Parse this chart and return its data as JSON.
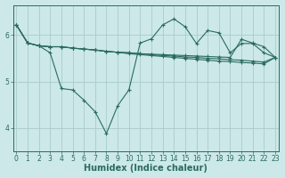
{
  "bg_color": "#cce8e8",
  "grid_color": "#aacccc",
  "line_color": "#2a6b60",
  "xlabel": "Humidex (Indice chaleur)",
  "xlabel_fontsize": 7,
  "tick_fontsize": 5.5,
  "xlim": [
    -0.3,
    23.3
  ],
  "ylim": [
    3.5,
    6.65
  ],
  "yticks": [
    4,
    5,
    6
  ],
  "xticks": [
    0,
    1,
    2,
    3,
    4,
    5,
    6,
    7,
    8,
    9,
    10,
    11,
    12,
    13,
    14,
    15,
    16,
    17,
    18,
    19,
    20,
    21,
    22,
    23
  ],
  "lines": [
    {
      "x": [
        0,
        1,
        2,
        3,
        4,
        5,
        6,
        7,
        8,
        9,
        10,
        11,
        12,
        13,
        14,
        15,
        16,
        17,
        18,
        19,
        20,
        21,
        22,
        23
      ],
      "y": [
        6.22,
        5.83,
        5.77,
        5.75,
        5.75,
        5.72,
        5.7,
        5.68,
        5.65,
        5.63,
        5.62,
        5.6,
        5.59,
        5.58,
        5.57,
        5.56,
        5.55,
        5.54,
        5.53,
        5.52,
        5.91,
        5.83,
        5.75,
        5.52
      ],
      "marker": true
    },
    {
      "x": [
        0,
        1,
        2,
        3,
        4,
        5,
        6,
        7,
        8,
        9,
        10,
        11,
        12,
        13,
        14,
        15,
        16,
        17,
        18,
        19,
        20,
        21,
        22,
        23
      ],
      "y": [
        6.22,
        5.83,
        5.77,
        5.75,
        5.75,
        5.72,
        5.7,
        5.68,
        5.65,
        5.63,
        5.62,
        5.6,
        5.58,
        5.56,
        5.55,
        5.53,
        5.52,
        5.5,
        5.49,
        5.47,
        5.46,
        5.44,
        5.42,
        5.52
      ],
      "marker": true
    },
    {
      "x": [
        0,
        1,
        2,
        3,
        4,
        5,
        6,
        7,
        8,
        9,
        10,
        11,
        12,
        13,
        14,
        15,
        16,
        17,
        18,
        19,
        20,
        21,
        22,
        23
      ],
      "y": [
        6.22,
        5.83,
        5.77,
        5.75,
        5.75,
        5.72,
        5.7,
        5.68,
        5.65,
        5.63,
        5.6,
        5.58,
        5.56,
        5.54,
        5.52,
        5.5,
        5.48,
        5.46,
        5.44,
        5.43,
        5.41,
        5.4,
        5.38,
        5.52
      ],
      "marker": true
    },
    {
      "x": [
        0,
        1,
        2,
        3,
        4,
        5,
        6,
        7,
        8,
        9,
        10,
        11,
        12,
        13,
        14,
        15,
        16,
        17,
        18,
        19,
        20,
        21,
        22,
        23
      ],
      "y": [
        6.22,
        5.83,
        5.77,
        5.62,
        4.85,
        4.82,
        4.6,
        4.35,
        3.88,
        4.48,
        4.82,
        5.83,
        5.92,
        6.22,
        6.35,
        6.18,
        5.82,
        6.1,
        6.05,
        5.62,
        5.82,
        5.82,
        5.62,
        5.52
      ],
      "marker": true
    }
  ]
}
